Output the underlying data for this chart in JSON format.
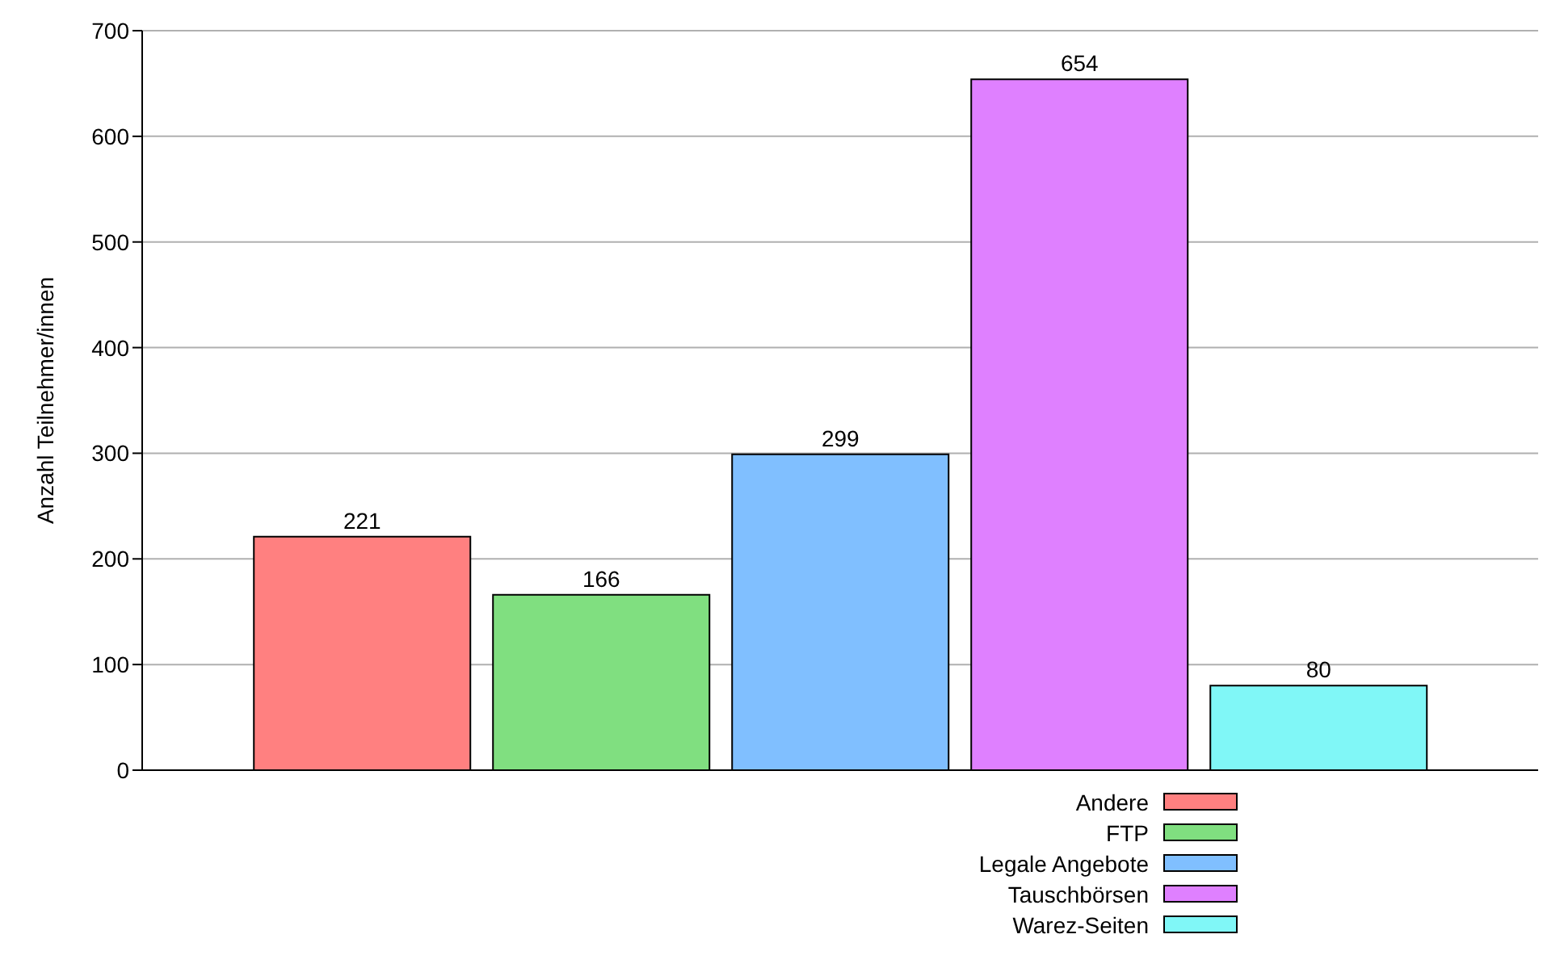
{
  "chart_data": {
    "type": "bar",
    "ylabel": "Anzahl Teilnehmer/innen",
    "categories": [
      null
    ],
    "series": [
      {
        "name": "Andere",
        "color": "#ff8080",
        "values": [
          221
        ]
      },
      {
        "name": "FTP",
        "color": "#80df80",
        "values": [
          166
        ]
      },
      {
        "name": "Legale Angebote",
        "color": "#80bfff",
        "values": [
          299
        ]
      },
      {
        "name": "Tauschbörsen",
        "color": "#df80ff",
        "values": [
          654
        ]
      },
      {
        "name": "Warez-Seiten",
        "color": "#80f7f7",
        "values": [
          80
        ]
      }
    ],
    "ylim": [
      0,
      700
    ],
    "yticks": [
      0,
      100,
      200,
      300,
      400,
      500,
      600,
      700
    ],
    "grid": "y",
    "legend": "bottom right",
    "data_labels": true
  }
}
